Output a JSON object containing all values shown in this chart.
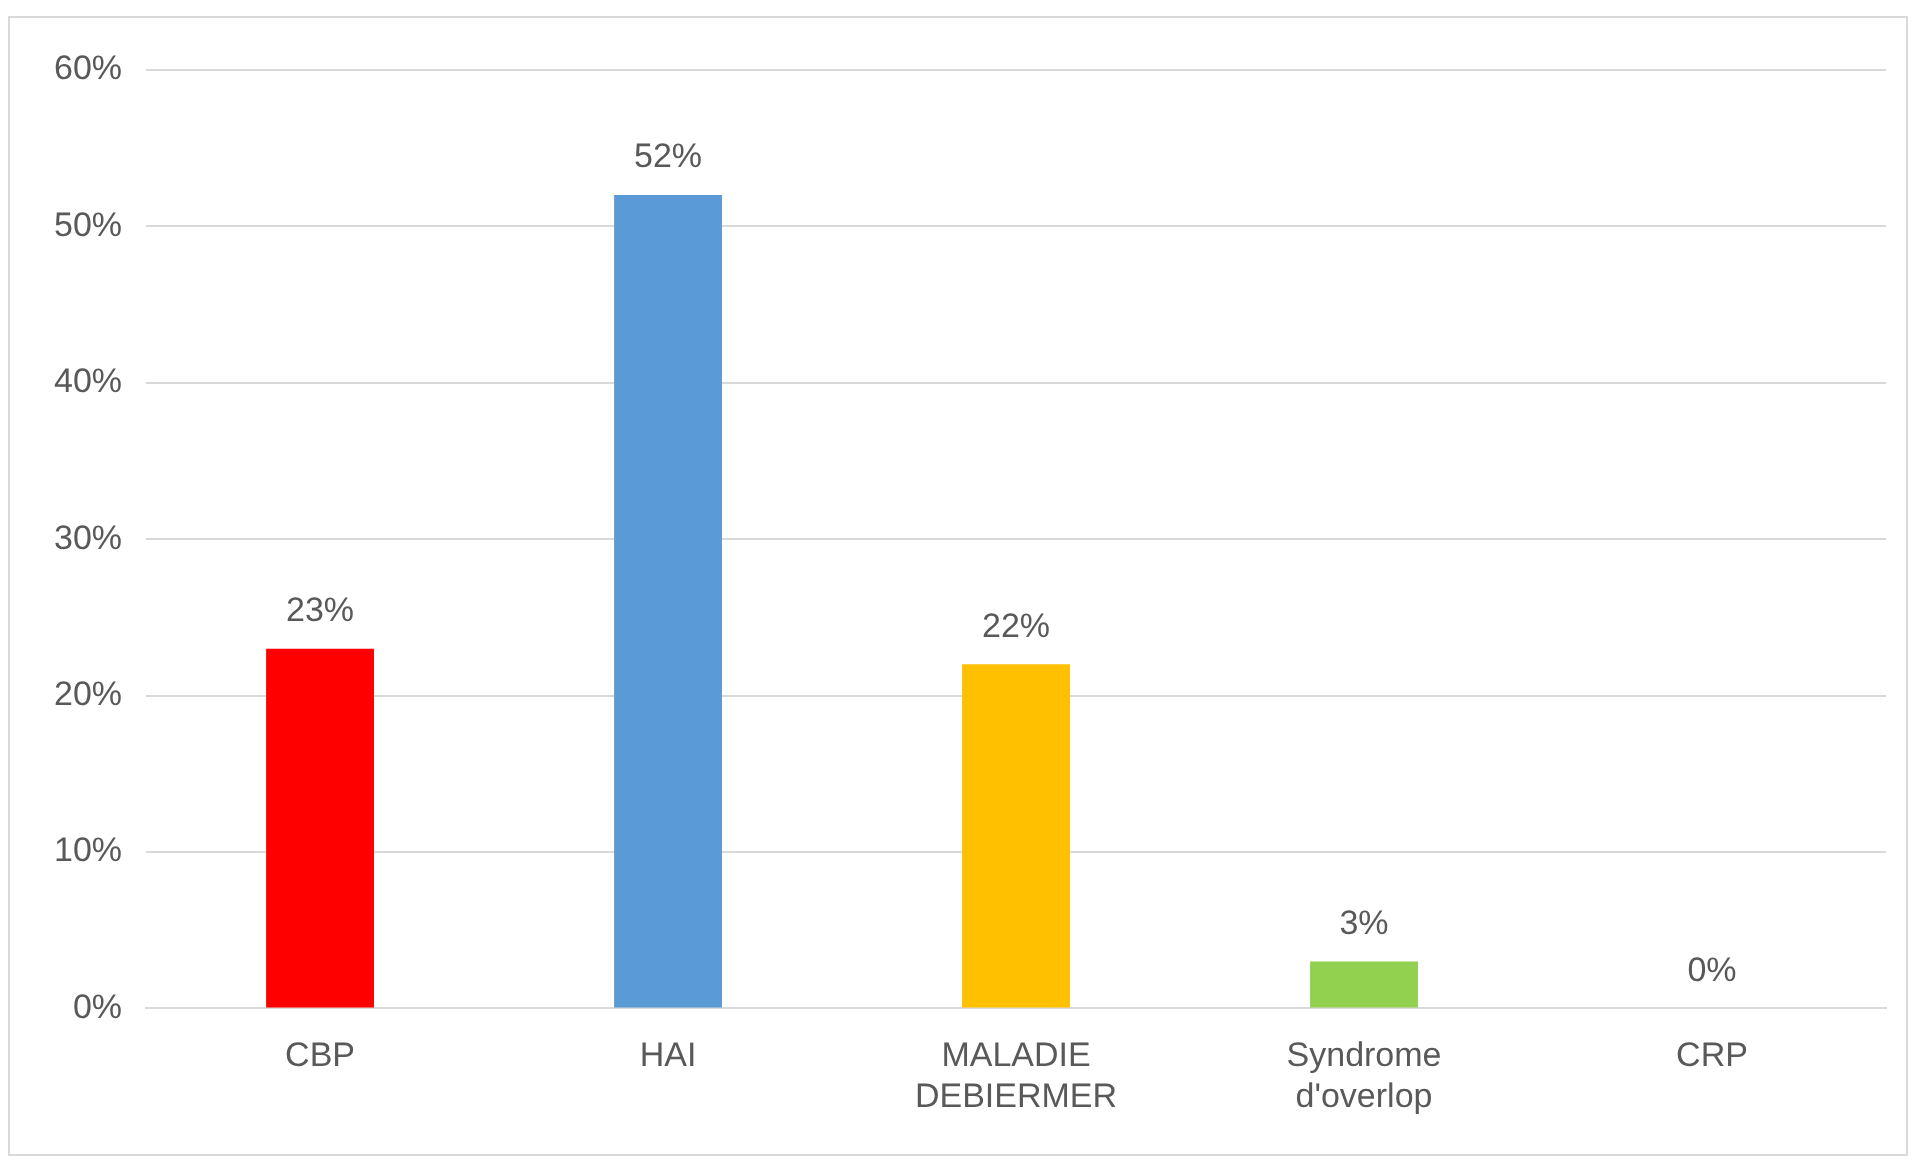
{
  "chart_data": {
    "type": "bar",
    "categories": [
      "CBP",
      "HAI",
      "MALADIE DEBIERMER",
      "Syndrome d'overlop",
      "CRP"
    ],
    "values": [
      23,
      52,
      22,
      3,
      0
    ],
    "colors": [
      "#ff0000",
      "#5b9bd5",
      "#ffc000",
      "#92d050",
      "#a5a5a5"
    ],
    "value_labels": [
      "23%",
      "52%",
      "22%",
      "3%",
      "0%"
    ],
    "ylim": [
      0,
      60
    ],
    "yticks": [
      {
        "value": 0,
        "label": "0%"
      },
      {
        "value": 10,
        "label": "10%"
      },
      {
        "value": 20,
        "label": "20%"
      },
      {
        "value": 30,
        "label": "30%"
      },
      {
        "value": 40,
        "label": "40%"
      },
      {
        "value": 50,
        "label": "50%"
      },
      {
        "value": 60,
        "label": "60%"
      }
    ],
    "grid": "y",
    "legend": false
  }
}
